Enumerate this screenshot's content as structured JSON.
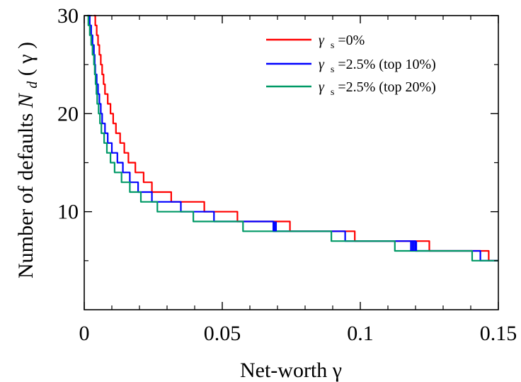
{
  "chart_data": {
    "type": "line",
    "xlabel": "Net-worth  γ",
    "ylabel": "Number of defaults",
    "ylabel_var": "N",
    "ylabel_sub": "d",
    "ylabel_arg": "( γ )",
    "xlim": [
      0,
      0.15
    ],
    "ylim": [
      0,
      30
    ],
    "x_ticks": [
      0,
      0.05,
      0.1,
      0.15
    ],
    "x_tick_labels": [
      "0",
      "0.05",
      "0.1",
      "0.15"
    ],
    "x_minor_ticks": [
      0.01,
      0.02,
      0.03,
      0.04,
      0.06,
      0.07,
      0.08,
      0.09,
      0.11,
      0.12,
      0.13,
      0.14
    ],
    "y_ticks": [
      10,
      20,
      30
    ],
    "y_tick_labels": [
      "10",
      "20",
      "30"
    ],
    "y_minor_ticks": [
      5,
      15,
      25
    ],
    "grid": false,
    "legend_position": "top-right",
    "series": [
      {
        "color": "#ff0000",
        "legend": {
          "sym": "γ",
          "sub": "s",
          "rest": "=0%"
        },
        "points": [
          [
            0.0035,
            30
          ],
          [
            0.004,
            29
          ],
          [
            0.0045,
            28
          ],
          [
            0.005,
            27
          ],
          [
            0.0055,
            26
          ],
          [
            0.006,
            25
          ],
          [
            0.0065,
            24
          ],
          [
            0.007,
            23
          ],
          [
            0.0075,
            22
          ],
          [
            0.0085,
            21
          ],
          [
            0.0095,
            20
          ],
          [
            0.0105,
            19
          ],
          [
            0.0115,
            18
          ],
          [
            0.013,
            17
          ],
          [
            0.0145,
            16
          ],
          [
            0.016,
            15
          ],
          [
            0.0185,
            14
          ],
          [
            0.0215,
            13
          ],
          [
            0.0245,
            12
          ],
          [
            0.0315,
            11
          ],
          [
            0.0435,
            10
          ],
          [
            0.0555,
            9
          ],
          [
            0.0745,
            8
          ],
          [
            0.098,
            7
          ],
          [
            0.125,
            6
          ],
          [
            0.1465,
            5
          ],
          [
            0.15,
            5
          ]
        ]
      },
      {
        "color": "#0000ff",
        "legend": {
          "sym": "γ",
          "sub": "s",
          "rest": "=2.5% (top 10%)"
        },
        "points": [
          [
            0.0015,
            30
          ],
          [
            0.002,
            29
          ],
          [
            0.0025,
            28
          ],
          [
            0.003,
            27
          ],
          [
            0.0035,
            26
          ],
          [
            0.0038,
            25
          ],
          [
            0.004,
            24
          ],
          [
            0.0045,
            23
          ],
          [
            0.005,
            22
          ],
          [
            0.0055,
            21
          ],
          [
            0.006,
            20
          ],
          [
            0.0065,
            19
          ],
          [
            0.0075,
            18
          ],
          [
            0.0085,
            17
          ],
          [
            0.01,
            16
          ],
          [
            0.012,
            15
          ],
          [
            0.014,
            14
          ],
          [
            0.0165,
            13
          ],
          [
            0.0195,
            12
          ],
          [
            0.0245,
            11
          ],
          [
            0.035,
            10
          ],
          [
            0.047,
            9
          ],
          [
            0.0685,
            8
          ],
          [
            0.0945,
            7
          ],
          [
            0.12,
            6
          ],
          [
            0.1435,
            5
          ],
          [
            0.15,
            5
          ]
        ]
      },
      {
        "color": "#009966",
        "legend": {
          "sym": "γ",
          "sub": "s",
          "rest": "=2.5% (top 20%)"
        },
        "points": [
          [
            0.001,
            30
          ],
          [
            0.0015,
            29
          ],
          [
            0.002,
            28
          ],
          [
            0.0025,
            27
          ],
          [
            0.003,
            26
          ],
          [
            0.0035,
            25
          ],
          [
            0.0038,
            24
          ],
          [
            0.0041,
            23
          ],
          [
            0.0044,
            22
          ],
          [
            0.0047,
            21
          ],
          [
            0.0052,
            20
          ],
          [
            0.0057,
            19
          ],
          [
            0.0062,
            18
          ],
          [
            0.0072,
            17
          ],
          [
            0.0082,
            16
          ],
          [
            0.0095,
            15
          ],
          [
            0.011,
            14
          ],
          [
            0.0135,
            13
          ],
          [
            0.0165,
            12
          ],
          [
            0.0205,
            11
          ],
          [
            0.0265,
            10
          ],
          [
            0.0395,
            9
          ],
          [
            0.0575,
            8
          ],
          [
            0.0895,
            7
          ],
          [
            0.1125,
            6
          ],
          [
            0.1405,
            5
          ],
          [
            0.15,
            5
          ]
        ]
      }
    ],
    "blue_spikes": [
      [
        0.0685,
        8,
        9
      ],
      [
        0.069,
        8,
        9
      ],
      [
        0.0695,
        8,
        9
      ],
      [
        0.1183,
        6,
        7
      ],
      [
        0.1188,
        6,
        7
      ],
      [
        0.1193,
        6,
        7
      ],
      [
        0.1198,
        6,
        7
      ],
      [
        0.1203,
        6,
        7
      ]
    ]
  }
}
